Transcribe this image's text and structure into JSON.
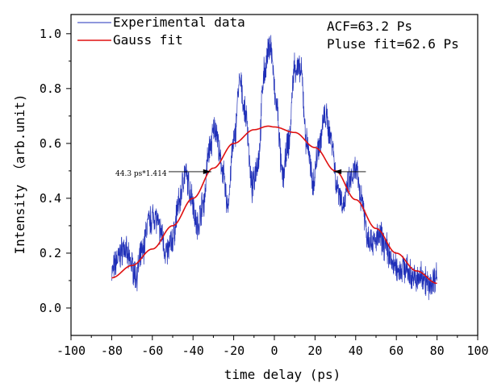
{
  "chart_data": {
    "type": "line",
    "xlabel": "time delay (ps)",
    "ylabel": "Intensity （arb.unit)",
    "xlim": [
      -100,
      100
    ],
    "ylim": [
      -0.1,
      1.07
    ],
    "xticks": [
      "-100",
      "-80",
      "-60",
      "-40",
      "-20",
      "0",
      "20",
      "40",
      "60",
      "80",
      "100"
    ],
    "yticks": [
      "0.0",
      "0.2",
      "0.4",
      "0.6",
      "0.8",
      "1.0"
    ],
    "legend_position": "top-left",
    "annotations": {
      "acf": "ACF=63.2 Ps",
      "pulse_fit": "Pluse fit=62.6 Ps",
      "fwhm_note": "44.3 ps*1.414"
    },
    "colors": {
      "experimental": "#1f2fb8",
      "fit": "#e01010"
    },
    "series": [
      {
        "name": "Experimental data",
        "x": [
          -80,
          -77,
          -74,
          -71,
          -68,
          -65,
          -62,
          -59,
          -56,
          -53,
          -50,
          -47,
          -44,
          -41,
          -38,
          -35,
          -32,
          -29,
          -26,
          -23,
          -20,
          -17,
          -14,
          -11,
          -8,
          -5,
          -2,
          1,
          4,
          7,
          10,
          13,
          16,
          19,
          22,
          25,
          28,
          31,
          34,
          37,
          40,
          43,
          46,
          49,
          52,
          55,
          58,
          61,
          64,
          67,
          70,
          73,
          76,
          79,
          80
        ],
        "y": [
          0.13,
          0.18,
          0.22,
          0.17,
          0.12,
          0.2,
          0.31,
          0.34,
          0.28,
          0.2,
          0.25,
          0.38,
          0.49,
          0.42,
          0.3,
          0.38,
          0.58,
          0.66,
          0.52,
          0.38,
          0.6,
          0.82,
          0.7,
          0.44,
          0.54,
          0.86,
          0.96,
          0.74,
          0.48,
          0.6,
          0.88,
          0.86,
          0.6,
          0.46,
          0.6,
          0.7,
          0.62,
          0.44,
          0.38,
          0.46,
          0.5,
          0.4,
          0.26,
          0.24,
          0.26,
          0.22,
          0.16,
          0.14,
          0.15,
          0.12,
          0.1,
          0.12,
          0.08,
          0.11,
          0.12
        ]
      },
      {
        "name": "Gauss fit",
        "x": [
          -80,
          -70,
          -60,
          -50,
          -40,
          -30,
          -20,
          -10,
          -3,
          0,
          10,
          20,
          30,
          40,
          50,
          60,
          70,
          80
        ],
        "y": [
          0.11,
          0.155,
          0.215,
          0.3,
          0.4,
          0.51,
          0.6,
          0.65,
          0.663,
          0.66,
          0.64,
          0.585,
          0.5,
          0.395,
          0.29,
          0.2,
          0.135,
          0.09
        ]
      }
    ]
  }
}
